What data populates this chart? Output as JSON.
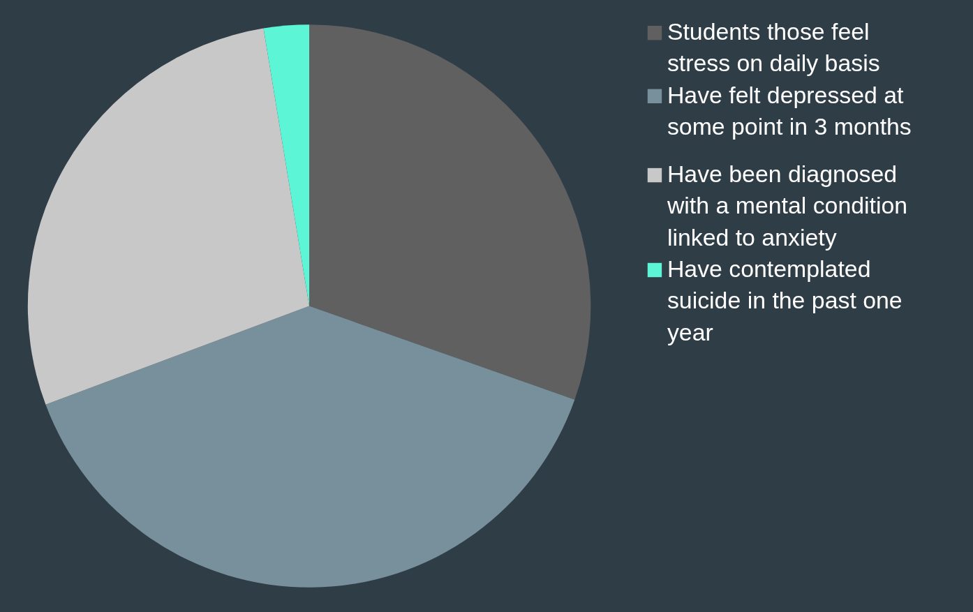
{
  "chart_data": {
    "type": "pie",
    "categories": [
      "Students those feel stress on daily basis",
      "Have felt depressed at some point in 3 months",
      "Have been diagnosed with a mental condition linked to anxiety",
      "Have contemplated suicide in the past one year"
    ],
    "values": [
      30.4,
      38.9,
      28.1,
      2.6
    ],
    "colors": [
      "#606060",
      "#78909c",
      "#c8c8c8",
      "#5cf5d6"
    ],
    "legend": "right"
  }
}
